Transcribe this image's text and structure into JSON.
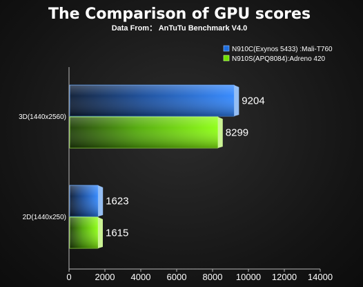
{
  "chart_data": {
    "type": "bar",
    "orientation": "horizontal",
    "title": "The Comparison of GPU scores",
    "subtitle": "Data From： AnTuTu Benchmark V4.0",
    "categories": [
      "3D(1440x2560)",
      "2D(1440x250)"
    ],
    "series": [
      {
        "name": "N910C(Exynos 5433) :Mali-T760",
        "values": [
          9204,
          1623
        ],
        "color": "#1f6fe0"
      },
      {
        "name": "N910S(APQ8084):Adreno 420",
        "values": [
          8299,
          1615
        ],
        "color": "#6fe000"
      }
    ],
    "xlim": [
      0,
      14000
    ],
    "xticks": [
      0,
      2000,
      4000,
      6000,
      8000,
      10000,
      12000,
      14000
    ],
    "data_labels": true,
    "grid": false,
    "legend_position": "top-right"
  }
}
